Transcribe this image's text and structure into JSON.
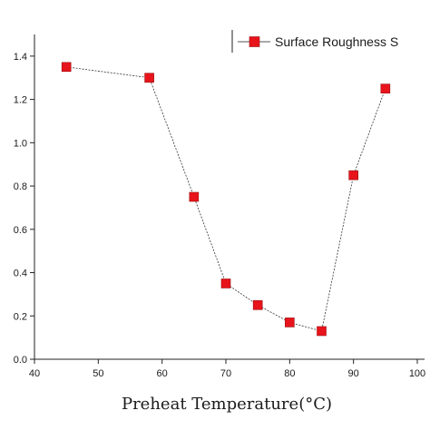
{
  "chart_data": {
    "type": "line",
    "xlabel": "Preheat Temperature(°C)",
    "ylabel": "",
    "xlim": [
      40,
      100
    ],
    "ylim": [
      0,
      1.5
    ],
    "xticks": [
      "40",
      "50",
      "60",
      "70",
      "80",
      "90",
      "100"
    ],
    "yticks": [
      "0.0",
      "0.2",
      "0.4",
      "0.6",
      "0.8",
      "1.0",
      "1.2",
      "1.4"
    ],
    "grid": false,
    "legend_position": "top-right",
    "series": [
      {
        "name": "Surface Roughness S",
        "x": [
          45,
          58,
          65,
          70,
          75,
          80,
          85,
          90,
          95
        ],
        "values": [
          1.35,
          1.3,
          0.75,
          0.35,
          0.25,
          0.17,
          0.13,
          0.85,
          1.25
        ],
        "marker_color": "#e8141b",
        "line_color": "#333333"
      }
    ]
  }
}
